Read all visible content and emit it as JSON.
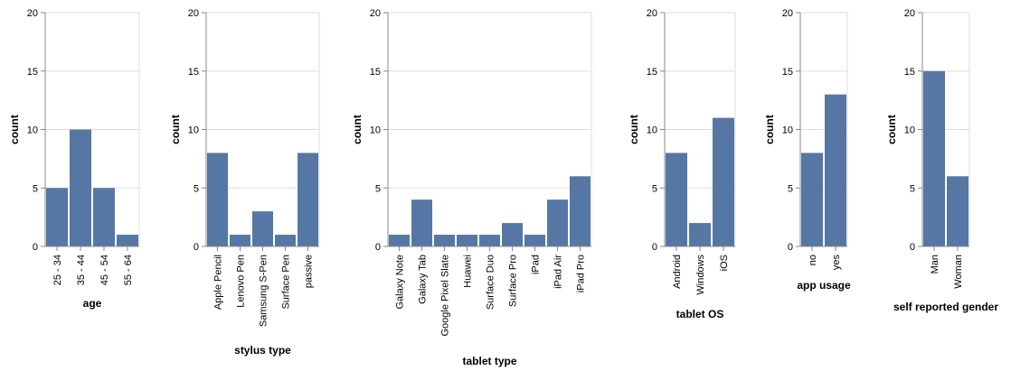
{
  "chart_data": [
    {
      "type": "bar",
      "xlabel": "age",
      "ylabel": "count",
      "ylim": [
        0,
        20
      ],
      "yticks": [
        0,
        5,
        10,
        15,
        20
      ],
      "grid": true,
      "bar_color": "#5677a4",
      "categories": [
        "25 - 34",
        "35 - 44",
        "45 - 54",
        "55 - 64"
      ],
      "values": [
        5,
        10,
        5,
        1
      ]
    },
    {
      "type": "bar",
      "xlabel": "stylus type",
      "ylabel": "count",
      "ylim": [
        0,
        20
      ],
      "yticks": [
        0,
        5,
        10,
        15,
        20
      ],
      "grid": true,
      "bar_color": "#5677a4",
      "categories": [
        "Apple Pencil",
        "Lenovo Pen",
        "Samsung S-Pen",
        "Surface Pen",
        "passive"
      ],
      "values": [
        8,
        1,
        3,
        1,
        8
      ]
    },
    {
      "type": "bar",
      "xlabel": "tablet type",
      "ylabel": "count",
      "ylim": [
        0,
        20
      ],
      "yticks": [
        0,
        5,
        10,
        15,
        20
      ],
      "grid": true,
      "bar_color": "#5677a4",
      "categories": [
        "Galaxy Note",
        "Galaxy Tab",
        "Google Pixel Slate",
        "Huawei",
        "Surface Duo",
        "Surface Pro",
        "iPad",
        "iPad Air",
        "iPad Pro"
      ],
      "values": [
        1,
        4,
        1,
        1,
        1,
        2,
        1,
        4,
        6
      ]
    },
    {
      "type": "bar",
      "xlabel": "tablet OS",
      "ylabel": "count",
      "ylim": [
        0,
        20
      ],
      "yticks": [
        0,
        5,
        10,
        15,
        20
      ],
      "grid": true,
      "bar_color": "#5677a4",
      "categories": [
        "Android",
        "Windows",
        "iOS"
      ],
      "values": [
        8,
        2,
        11
      ]
    },
    {
      "type": "bar",
      "xlabel": "app usage",
      "ylabel": "count",
      "ylim": [
        0,
        20
      ],
      "yticks": [
        0,
        5,
        10,
        15,
        20
      ],
      "grid": true,
      "bar_color": "#5677a4",
      "categories": [
        "no",
        "yes"
      ],
      "values": [
        8,
        13
      ]
    },
    {
      "type": "bar",
      "xlabel": "self reported gender",
      "ylabel": "count",
      "ylim": [
        0,
        20
      ],
      "yticks": [
        0,
        5,
        10,
        15,
        20
      ],
      "grid": true,
      "bar_color": "#5677a4",
      "categories": [
        "Man",
        "Woman"
      ],
      "values": [
        15,
        6
      ]
    }
  ]
}
